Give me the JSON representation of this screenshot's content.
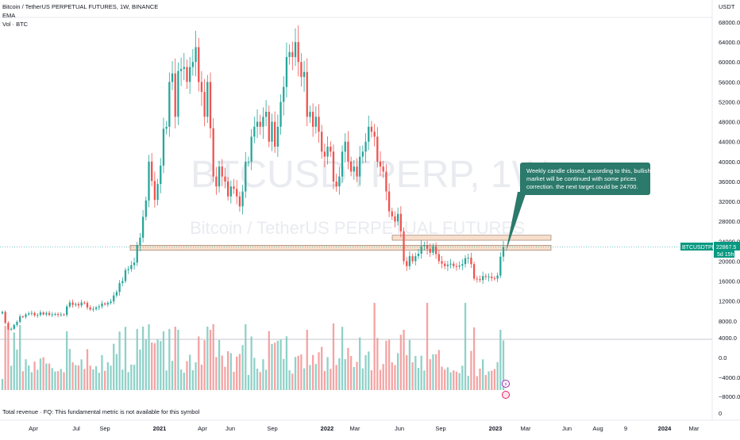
{
  "header": {
    "title": "Bitcoin / TetherUS PERPETUAL FUTURES, 1W, BINANCE",
    "indicator_1": "EMA",
    "indicator_2": "Vol · BTC"
  },
  "footer": {
    "note": "Total revenue · FQ: This fundamental metric is not available for this symbol",
    "zero_label": "0"
  },
  "watermark": {
    "symbol": "BTCUSDTPERP, 1W",
    "name": "Bitcoin / TetherUS PERPETUAL FUTURES"
  },
  "price_axis": {
    "currency": "USDT",
    "ticks": [
      "68000.0",
      "64000.0",
      "60000.0",
      "56000.0",
      "52000.0",
      "48000.0",
      "44000.0",
      "40000.0",
      "36000.0",
      "32000.0",
      "28000.0",
      "24000.0",
      "20000.0",
      "16000.0",
      "12000.0",
      "8000.0",
      "4000.0",
      "0.0",
      "−4000.0",
      "−8000.0"
    ],
    "tick_values": [
      68000,
      64000,
      60000,
      56000,
      52000,
      48000,
      44000,
      40000,
      36000,
      32000,
      28000,
      24000,
      20000,
      16000,
      12000,
      8000,
      4000,
      0,
      -4000,
      -8000
    ]
  },
  "time_axis": {
    "labels": [
      "Apr",
      "Jul",
      "Sep",
      "2021",
      "Apr",
      "Jun",
      "Sep",
      "2022",
      "Mar",
      "Jun",
      "Sep",
      "2023",
      "Mar",
      "Jun",
      "Aug",
      "9",
      "2024",
      "Mar"
    ],
    "bold": [
      "2021",
      "2022",
      "2023",
      "2024"
    ]
  },
  "price_tag": {
    "symbol": "BTCUSDTPERP",
    "price": "22867.5",
    "countdown": "5d 15h"
  },
  "callout": {
    "lines": [
      "Weekly candle closed, according to this, bullish",
      "market will be continued with some prices",
      "correction. the next target could be 24700."
    ]
  },
  "colors": {
    "up": "#26a69a",
    "down": "#ef5350",
    "up_volume": "#8fd1c8",
    "down_volume": "#f5a3a3",
    "zone_fill": "#f8dfcc",
    "zone_border": "#8a6d5a",
    "callout_bg": "#2b7a6b",
    "tag_bg": "#089981",
    "axis_text": "#131722"
  },
  "chart_data": {
    "type": "candlestick",
    "interval": "1W",
    "y_range": [
      -10000,
      72000
    ],
    "candle_closes": [
      9800,
      7600,
      6300,
      6400,
      7200,
      7800,
      8900,
      8800,
      9300,
      9500,
      9600,
      9100,
      9200,
      9700,
      9300,
      9600,
      9200,
      9300,
      9400,
      9200,
      9300,
      9200,
      10900,
      11700,
      11200,
      11400,
      11100,
      11700,
      11600,
      10700,
      10300,
      10400,
      10700,
      10900,
      11500,
      11300,
      11600,
      11900,
      13100,
      13800,
      15600,
      16000,
      18200,
      18400,
      19200,
      19700,
      23200,
      24700,
      28900,
      32200,
      40000,
      36100,
      32300,
      35500,
      39200,
      46600,
      47000,
      56000,
      57700,
      49000,
      58200,
      58600,
      59000,
      56000,
      59000,
      60000,
      63000,
      56000,
      54000,
      49000,
      56000,
      46700,
      37000,
      35000,
      39000,
      37000,
      36000,
      33000,
      35000,
      34500,
      33000,
      31000,
      34000,
      40000,
      40000,
      45000,
      47000,
      48000,
      47000,
      49000,
      50000,
      44000,
      48000,
      43000,
      47000,
      52000,
      55000,
      61000,
      62000,
      61000,
      64000,
      60000,
      57000,
      58000,
      49000,
      50000,
      47000,
      49000,
      46000,
      42000,
      41000,
      43000,
      42000,
      36000,
      35000,
      37000,
      42000,
      44000,
      40000,
      38000,
      39000,
      37000,
      41000,
      42000,
      44000,
      47000,
      46000,
      45000,
      40000,
      39000,
      38000,
      34000,
      30000,
      29000,
      28000,
      29500,
      26000,
      20000,
      19000,
      21000,
      20000,
      21000,
      21500,
      23000,
      23200,
      22500,
      21700,
      23000,
      21400,
      20000,
      19500,
      19000,
      19300,
      19500,
      19000,
      18900,
      19100,
      19400,
      20600,
      20700,
      19400,
      16500,
      16400,
      16200,
      17000,
      16800,
      16900,
      16600,
      16500,
      17100,
      20900,
      22867
    ],
    "series": [
      {
        "name": "EMA",
        "values": []
      },
      {
        "name": "Vol · BTC",
        "values": []
      }
    ],
    "horizontal_zones": [
      {
        "from": 22200,
        "to": 23200
      },
      {
        "from": 24200,
        "to": 25200
      }
    ],
    "last_price": 22867.5
  }
}
